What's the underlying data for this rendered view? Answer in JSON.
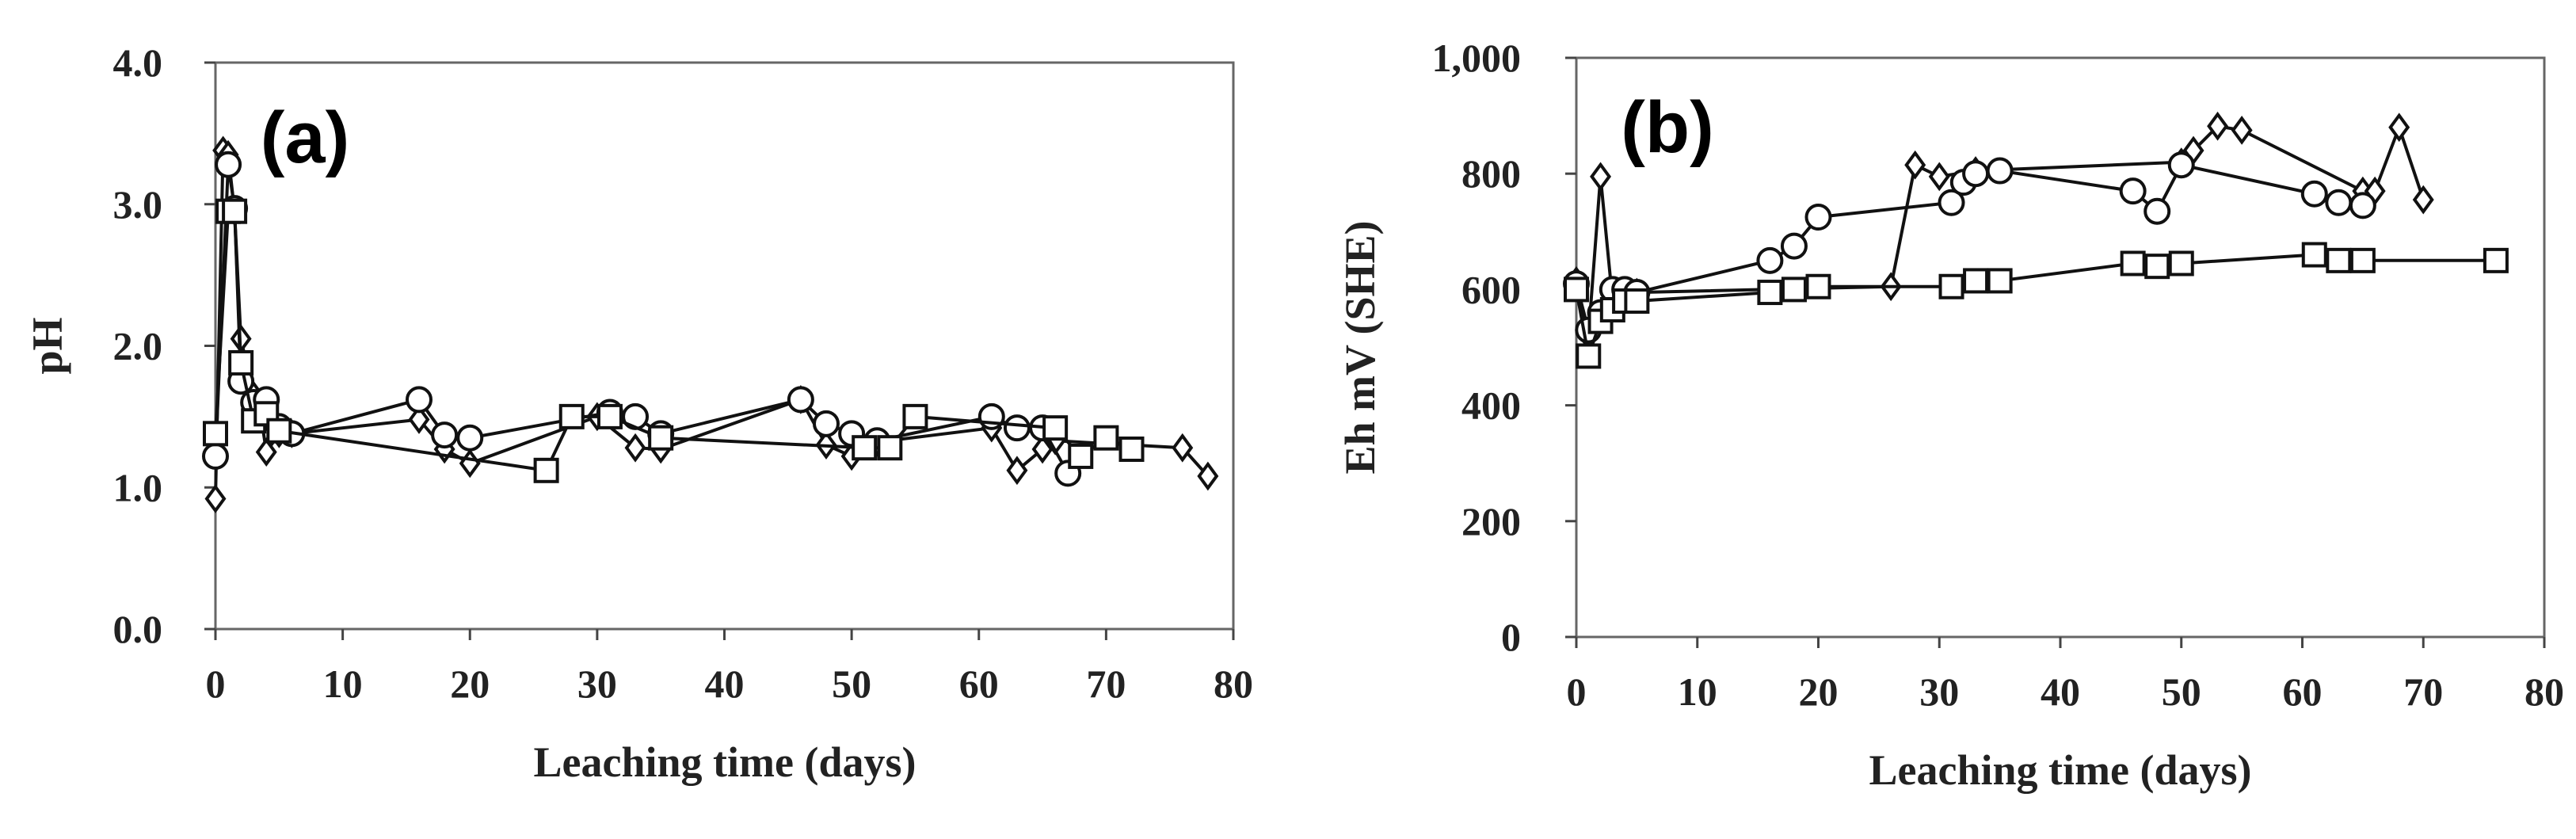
{
  "chart_data": [
    {
      "type": "line",
      "panel_label": "(a)",
      "title": "",
      "xlabel": "Leaching time (days)",
      "ylabel": "pH",
      "xlim": [
        0,
        80
      ],
      "ylim": [
        0,
        4
      ],
      "xticks": [
        0,
        10,
        20,
        30,
        40,
        50,
        60,
        70,
        80
      ],
      "xtick_labels": [
        "0",
        "10",
        "20",
        "30",
        "40",
        "50",
        "60",
        "70",
        "80"
      ],
      "yticks": [
        0,
        1,
        2,
        3,
        4
      ],
      "ytick_labels": [
        "0.0",
        "1.0",
        "2.0",
        "3.0",
        "4.0"
      ],
      "series": [
        {
          "name": "diamond",
          "marker": "diamond",
          "points": [
            [
              0,
              0.92
            ],
            [
              0.6,
              3.38
            ],
            [
              1,
              3.35
            ],
            [
              1.5,
              2.95
            ],
            [
              2,
              2.05
            ],
            [
              3,
              1.65
            ],
            [
              3.5,
              1.55
            ],
            [
              4,
              1.25
            ],
            [
              5,
              1.38
            ],
            [
              6,
              1.38
            ],
            [
              16,
              1.48
            ],
            [
              18,
              1.27
            ],
            [
              20,
              1.17
            ],
            [
              30,
              1.5
            ],
            [
              33,
              1.28
            ],
            [
              35,
              1.27
            ],
            [
              46,
              1.62
            ],
            [
              48,
              1.3
            ],
            [
              50,
              1.22
            ],
            [
              52,
              1.32
            ],
            [
              61,
              1.42
            ],
            [
              63,
              1.12
            ],
            [
              65,
              1.27
            ],
            [
              66,
              1.33
            ],
            [
              76,
              1.28
            ],
            [
              78,
              1.08
            ]
          ]
        },
        {
          "name": "circle",
          "marker": "circle",
          "points": [
            [
              0,
              1.22
            ],
            [
              1,
              3.28
            ],
            [
              1.5,
              2.97
            ],
            [
              2,
              1.75
            ],
            [
              3,
              1.6
            ],
            [
              4,
              1.62
            ],
            [
              5,
              1.43
            ],
            [
              6,
              1.38
            ],
            [
              16,
              1.62
            ],
            [
              18,
              1.37
            ],
            [
              20,
              1.35
            ],
            [
              31,
              1.53
            ],
            [
              33,
              1.5
            ],
            [
              35,
              1.38
            ],
            [
              46,
              1.62
            ],
            [
              48,
              1.45
            ],
            [
              50,
              1.38
            ],
            [
              52,
              1.33
            ],
            [
              61,
              1.5
            ],
            [
              63,
              1.42
            ],
            [
              65,
              1.42
            ],
            [
              67,
              1.1
            ]
          ]
        },
        {
          "name": "square",
          "marker": "square",
          "points": [
            [
              0,
              1.38
            ],
            [
              1,
              2.95
            ],
            [
              1.5,
              2.95
            ],
            [
              2,
              1.88
            ],
            [
              3,
              1.47
            ],
            [
              4,
              1.52
            ],
            [
              5,
              1.4
            ],
            [
              26,
              1.12
            ],
            [
              28,
              1.5
            ],
            [
              31,
              1.5
            ],
            [
              35,
              1.35
            ],
            [
              51,
              1.28
            ],
            [
              53,
              1.28
            ],
            [
              55,
              1.5
            ],
            [
              66,
              1.42
            ],
            [
              68,
              1.22
            ],
            [
              70,
              1.35
            ],
            [
              72,
              1.27
            ]
          ]
        }
      ]
    },
    {
      "type": "line",
      "panel_label": "(b)",
      "title": "",
      "xlabel": "Leaching time (days)",
      "ylabel": "Eh mV (SHE)",
      "xlim": [
        0,
        80
      ],
      "ylim": [
        0,
        1000
      ],
      "xticks": [
        0,
        10,
        20,
        30,
        40,
        50,
        60,
        70,
        80
      ],
      "xtick_labels": [
        "0",
        "10",
        "20",
        "30",
        "40",
        "50",
        "60",
        "70",
        "80"
      ],
      "yticks": [
        0,
        200,
        400,
        600,
        800,
        1000
      ],
      "ytick_labels": [
        "0",
        "200",
        "400",
        "600",
        "800",
        "1,000"
      ],
      "series": [
        {
          "name": "diamond",
          "marker": "diamond",
          "points": [
            [
              0,
              615
            ],
            [
              1,
              520
            ],
            [
              2,
              795
            ],
            [
              3,
              580
            ],
            [
              4,
              590
            ],
            [
              5,
              595
            ],
            [
              26,
              605
            ],
            [
              28,
              815
            ],
            [
              30,
              795
            ],
            [
              33,
              805
            ],
            [
              50,
              820
            ],
            [
              51,
              840
            ],
            [
              53,
              882
            ],
            [
              55,
              875
            ],
            [
              65,
              770
            ],
            [
              66,
              770
            ],
            [
              68,
              880
            ],
            [
              70,
              755
            ]
          ]
        },
        {
          "name": "circle",
          "marker": "circle",
          "points": [
            [
              0,
              610
            ],
            [
              1,
              530
            ],
            [
              2,
              560
            ],
            [
              3,
              600
            ],
            [
              4,
              600
            ],
            [
              5,
              595
            ],
            [
              16,
              650
            ],
            [
              18,
              675
            ],
            [
              20,
              725
            ],
            [
              31,
              750
            ],
            [
              32,
              785
            ],
            [
              33,
              800
            ],
            [
              35,
              805
            ],
            [
              46,
              770
            ],
            [
              48,
              735
            ],
            [
              50,
              815
            ],
            [
              61,
              765
            ],
            [
              63,
              750
            ],
            [
              65,
              745
            ]
          ]
        },
        {
          "name": "square",
          "marker": "square",
          "points": [
            [
              0,
              600
            ],
            [
              1,
              485
            ],
            [
              2,
              545
            ],
            [
              3,
              565
            ],
            [
              4,
              580
            ],
            [
              5,
              580
            ],
            [
              16,
              595
            ],
            [
              18,
              600
            ],
            [
              20,
              605
            ],
            [
              31,
              605
            ],
            [
              33,
              615
            ],
            [
              35,
              615
            ],
            [
              46,
              645
            ],
            [
              48,
              640
            ],
            [
              50,
              645
            ],
            [
              61,
              660
            ],
            [
              63,
              650
            ],
            [
              65,
              650
            ],
            [
              76,
              650
            ]
          ]
        }
      ]
    }
  ]
}
